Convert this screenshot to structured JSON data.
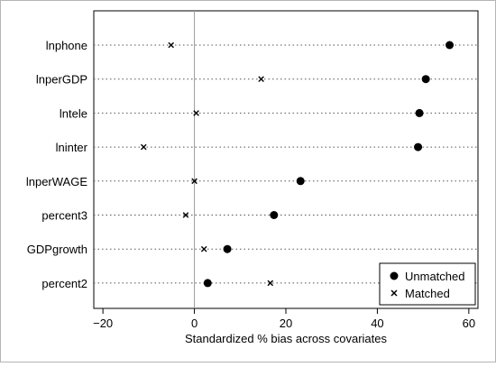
{
  "chart_data": {
    "type": "scatter",
    "orientation": "horizontal",
    "title": "",
    "xlabel": "Standardized % bias across covariates",
    "ylabel": "",
    "xlim": [
      -22,
      62
    ],
    "xticks": [
      -20,
      0,
      20,
      40,
      60
    ],
    "categories": [
      "lnphone",
      "lnperGDP",
      "lntele",
      "lninter",
      "lnperWAGE",
      "percent3",
      "GDPgrowth",
      "percent2"
    ],
    "series": [
      {
        "name": "Unmatched",
        "marker": "filled-circle",
        "values": [
          55.8,
          50.6,
          49.2,
          48.9,
          23.2,
          17.4,
          7.2,
          2.9
        ]
      },
      {
        "name": "Matched",
        "marker": "x",
        "values": [
          -5.1,
          14.6,
          0.4,
          -11.1,
          0.0,
          -1.9,
          2.1,
          16.6
        ]
      }
    ],
    "reference_line": 0,
    "grid": "dotted horizontal lines per category",
    "legend_position": "bottom-right"
  }
}
